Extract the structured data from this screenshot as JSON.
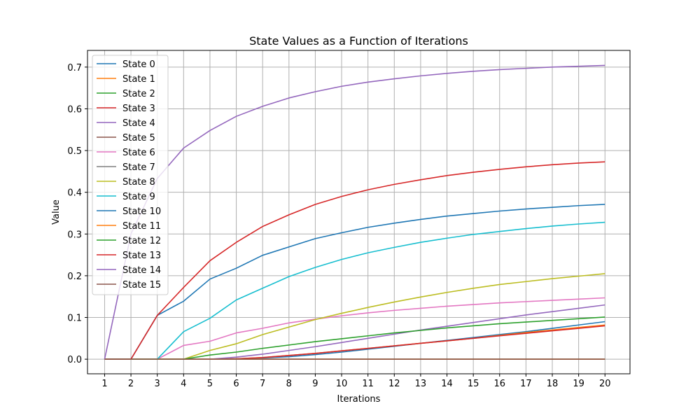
{
  "chart_data": {
    "type": "line",
    "title": "State Values as a Function of Iterations",
    "xlabel": "Iterations",
    "ylabel": "Value",
    "x": [
      1,
      2,
      3,
      4,
      5,
      6,
      7,
      8,
      9,
      10,
      11,
      12,
      13,
      14,
      15,
      16,
      17,
      18,
      19,
      20
    ],
    "xlim": [
      0.35,
      20.95
    ],
    "ylim": [
      -0.035,
      0.74
    ],
    "yticks": [
      0.0,
      0.1,
      0.2,
      0.3,
      0.4,
      0.5,
      0.6,
      0.7
    ],
    "ytick_labels": [
      "0.0",
      "0.1",
      "0.2",
      "0.3",
      "0.4",
      "0.5",
      "0.6",
      "0.7"
    ],
    "xtick_labels": [
      "1",
      "2",
      "3",
      "4",
      "5",
      "6",
      "7",
      "8",
      "9",
      "10",
      "11",
      "12",
      "13",
      "14",
      "15",
      "16",
      "17",
      "18",
      "19",
      "20"
    ],
    "grid": true,
    "legend_placement": "upper-left",
    "series": [
      {
        "name": "State 0",
        "color": "#1f77b4",
        "values": [
          0,
          0,
          0,
          0,
          0,
          0.001,
          0.003,
          0.006,
          0.011,
          0.017,
          0.024,
          0.031,
          0.038,
          0.045,
          0.052,
          0.059,
          0.066,
          0.074,
          0.082,
          0.09
        ]
      },
      {
        "name": "State 1",
        "color": "#ff7f0e",
        "values": [
          0,
          0,
          0,
          0,
          0,
          0.001,
          0.004,
          0.009,
          0.014,
          0.02,
          0.026,
          0.032,
          0.038,
          0.044,
          0.05,
          0.057,
          0.064,
          0.07,
          0.076,
          0.082
        ]
      },
      {
        "name": "State 2",
        "color": "#2ca02c",
        "values": [
          0,
          0,
          0,
          0,
          0,
          0,
          0,
          0,
          0,
          0,
          0,
          0,
          0,
          0,
          0,
          0,
          0,
          0,
          0,
          0
        ]
      },
      {
        "name": "State 3",
        "color": "#d62728",
        "values": [
          0,
          0,
          0,
          0,
          0,
          0.001,
          0.004,
          0.009,
          0.014,
          0.02,
          0.026,
          0.032,
          0.038,
          0.044,
          0.05,
          0.056,
          0.062,
          0.068,
          0.074,
          0.08
        ]
      },
      {
        "name": "State 4",
        "color": "#9467bd",
        "values": [
          0,
          0,
          0,
          0,
          0,
          0.005,
          0.012,
          0.021,
          0.03,
          0.04,
          0.05,
          0.06,
          0.07,
          0.079,
          0.088,
          0.097,
          0.106,
          0.114,
          0.122,
          0.13
        ]
      },
      {
        "name": "State 5",
        "color": "#8c564b",
        "values": [
          0,
          0,
          0,
          0,
          0,
          0,
          0,
          0,
          0,
          0,
          0,
          0,
          0,
          0,
          0,
          0,
          0,
          0,
          0,
          0
        ]
      },
      {
        "name": "State 6",
        "color": "#e377c2",
        "values": [
          0,
          0,
          0,
          0.033,
          0.043,
          0.063,
          0.074,
          0.087,
          0.096,
          0.104,
          0.111,
          0.117,
          0.122,
          0.127,
          0.131,
          0.135,
          0.138,
          0.141,
          0.144,
          0.147
        ]
      },
      {
        "name": "State 7",
        "color": "#7f7f7f",
        "values": [
          0,
          0,
          0,
          0,
          0,
          0,
          0,
          0,
          0,
          0,
          0,
          0,
          0,
          0,
          0,
          0,
          0,
          0,
          0,
          0
        ]
      },
      {
        "name": "State 8",
        "color": "#bcbd22",
        "values": [
          0,
          0,
          0,
          0,
          0.021,
          0.037,
          0.059,
          0.077,
          0.095,
          0.11,
          0.124,
          0.137,
          0.149,
          0.16,
          0.17,
          0.179,
          0.186,
          0.193,
          0.199,
          0.205
        ]
      },
      {
        "name": "State 9",
        "color": "#17becf",
        "values": [
          0,
          0,
          0,
          0.066,
          0.098,
          0.142,
          0.17,
          0.198,
          0.22,
          0.239,
          0.255,
          0.268,
          0.28,
          0.29,
          0.299,
          0.306,
          0.313,
          0.319,
          0.324,
          0.328
        ]
      },
      {
        "name": "State 10",
        "color": "#1f77b4",
        "values": [
          0,
          0,
          0.105,
          0.139,
          0.192,
          0.218,
          0.249,
          0.269,
          0.289,
          0.303,
          0.316,
          0.326,
          0.335,
          0.343,
          0.349,
          0.355,
          0.36,
          0.364,
          0.368,
          0.371
        ]
      },
      {
        "name": "State 11",
        "color": "#ff7f0e",
        "values": [
          0,
          0,
          0,
          0,
          0,
          0,
          0,
          0,
          0,
          0,
          0,
          0,
          0,
          0,
          0,
          0,
          0,
          0,
          0,
          0
        ]
      },
      {
        "name": "State 12",
        "color": "#2ca02c",
        "values": [
          0,
          0,
          0,
          0,
          0.01,
          0.017,
          0.026,
          0.034,
          0.042,
          0.049,
          0.056,
          0.063,
          0.069,
          0.075,
          0.08,
          0.085,
          0.089,
          0.093,
          0.097,
          0.101
        ]
      },
      {
        "name": "State 13",
        "color": "#d62728",
        "values": [
          0,
          0,
          0.105,
          0.172,
          0.236,
          0.28,
          0.318,
          0.346,
          0.371,
          0.39,
          0.406,
          0.419,
          0.43,
          0.44,
          0.448,
          0.455,
          0.461,
          0.466,
          0.47,
          0.473
        ]
      },
      {
        "name": "State 14",
        "color": "#9467bd",
        "values": [
          0,
          0.3,
          0.433,
          0.506,
          0.548,
          0.582,
          0.606,
          0.626,
          0.641,
          0.654,
          0.664,
          0.672,
          0.679,
          0.685,
          0.69,
          0.694,
          0.697,
          0.7,
          0.702,
          0.704
        ]
      },
      {
        "name": "State 15",
        "color": "#8c564b",
        "values": [
          0,
          0,
          0,
          0,
          0,
          0,
          0,
          0,
          0,
          0,
          0,
          0,
          0,
          0,
          0,
          0,
          0,
          0,
          0,
          0
        ]
      }
    ]
  }
}
